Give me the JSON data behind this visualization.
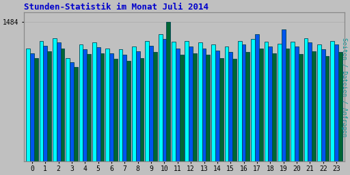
{
  "title": "Stunden-Statistik im Monat Juli 2014",
  "title_color": "#0000CC",
  "ylabel": "Seiten / Dateien / Anfragen",
  "ylabel_color": "#009999",
  "background_color": "#C0C0C0",
  "plot_bg_color": "#C0C0C0",
  "bar_width": 0.3,
  "ylim_min": 0,
  "ylim_max": 1580,
  "hours": [
    0,
    1,
    2,
    3,
    4,
    5,
    6,
    7,
    8,
    9,
    10,
    11,
    12,
    13,
    14,
    15,
    16,
    17,
    18,
    19,
    20,
    21,
    22,
    23
  ],
  "seiten": [
    1200,
    1280,
    1310,
    1100,
    1240,
    1260,
    1200,
    1190,
    1220,
    1280,
    1350,
    1270,
    1280,
    1260,
    1240,
    1220,
    1280,
    1300,
    1270,
    1250,
    1270,
    1310,
    1240,
    1280
  ],
  "dateien": [
    1150,
    1230,
    1260,
    1050,
    1190,
    1210,
    1150,
    1130,
    1170,
    1230,
    1300,
    1200,
    1220,
    1200,
    1180,
    1160,
    1240,
    1350,
    1220,
    1400,
    1220,
    1260,
    1190,
    1240
  ],
  "anfragen": [
    1100,
    1170,
    1200,
    1000,
    1140,
    1150,
    1090,
    1070,
    1100,
    1160,
    1484,
    1130,
    1150,
    1130,
    1100,
    1090,
    1160,
    1200,
    1150,
    1200,
    1140,
    1170,
    1120,
    1160
  ],
  "color_seiten": "#00FFFF",
  "color_dateien": "#0055EE",
  "color_anfragen": "#006633",
  "edge_color": "#004455",
  "grid_color": "#AAAAAA",
  "spine_color": "#888888"
}
